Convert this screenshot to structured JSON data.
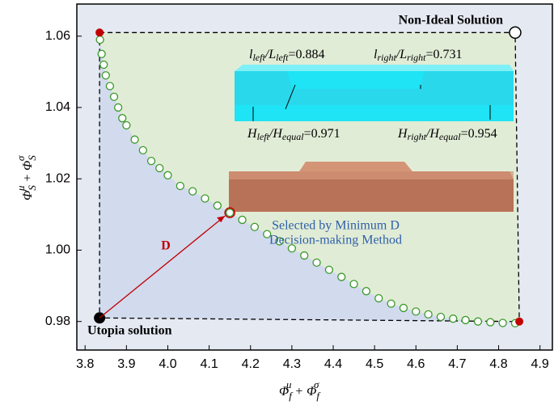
{
  "chart_data": {
    "type": "scatter",
    "x_label": [
      "Φ",
      "f",
      "μ",
      " + Φ",
      "f",
      "σ"
    ],
    "y_label": [
      "Φ",
      "S",
      "μ",
      " + Φ",
      "S",
      "σ"
    ],
    "xlim": [
      3.78,
      4.93
    ],
    "ylim": [
      0.972,
      1.069
    ],
    "xticks": [
      {
        "value": 3.8,
        "label": "3.8"
      },
      {
        "value": 3.9,
        "label": "3.9"
      },
      {
        "value": 4.0,
        "label": "4.0"
      },
      {
        "value": 4.1,
        "label": "4.1"
      },
      {
        "value": 4.2,
        "label": "4.2"
      },
      {
        "value": 4.3,
        "label": "4.3"
      },
      {
        "value": 4.4,
        "label": "4.4"
      },
      {
        "value": 4.5,
        "label": "4.5"
      },
      {
        "value": 4.6,
        "label": "4.6"
      },
      {
        "value": 4.7,
        "label": "4.7"
      },
      {
        "value": 4.8,
        "label": "4.8"
      },
      {
        "value": 4.9,
        "label": "4.9"
      }
    ],
    "yticks": [
      0.98,
      {
        "value": 1.0,
        "label": "1.00"
      },
      1.02,
      1.04,
      1.06
    ],
    "series": [
      {
        "color": "#3a9a2a",
        "x": [
          3.836,
          3.84,
          3.845,
          3.85,
          3.86,
          3.87,
          3.88,
          3.89,
          3.9,
          3.92,
          3.94,
          3.96,
          3.98,
          4.0,
          4.03,
          4.06,
          4.09,
          4.12,
          4.15,
          4.18,
          4.21,
          4.24,
          4.27,
          4.3,
          4.33,
          4.36,
          4.39,
          4.42,
          4.45,
          4.48,
          4.51,
          4.54,
          4.57,
          4.6,
          4.63,
          4.66,
          4.69,
          4.72,
          4.75,
          4.78,
          4.81,
          4.84
        ],
        "values": [
          1.059,
          1.055,
          1.052,
          1.049,
          1.046,
          1.043,
          1.04,
          1.037,
          1.035,
          1.031,
          1.028,
          1.025,
          1.023,
          1.021,
          1.018,
          1.0165,
          1.0145,
          1.0125,
          1.0105,
          1.0085,
          1.0065,
          1.0045,
          1.0025,
          1.0005,
          0.9985,
          0.9965,
          0.9945,
          0.9925,
          0.9905,
          0.9885,
          0.9865,
          0.985,
          0.9838,
          0.9828,
          0.982,
          0.9813,
          0.9808,
          0.9804,
          0.98,
          0.9798,
          0.9796,
          0.9795
        ]
      }
    ],
    "utopia": {
      "x": 3.835,
      "y": 0.981,
      "label": "Utopia solution"
    },
    "non_ideal": {
      "x": 4.84,
      "y": 1.061,
      "label": "Non-Ideal Solution"
    },
    "extremes": {
      "x": [
        3.835,
        4.85
      ],
      "y": [
        1.061,
        0.98
      ],
      "color": "#c00000"
    },
    "selected": {
      "x": 4.15,
      "y": 1.0105,
      "label": "D"
    },
    "annotations": [
      {
        "parts": [
          "l",
          "left",
          "/L",
          "left",
          "=0.884"
        ]
      },
      {
        "parts": [
          "l",
          "right",
          "/L",
          "right",
          "=0.731"
        ]
      },
      {
        "parts": [
          "H",
          "left",
          "/H",
          "equal",
          "=0.971"
        ]
      },
      {
        "parts": [
          "H",
          "right",
          "/H",
          "equal",
          "=0.954"
        ]
      }
    ],
    "caption": [
      "Selected by Minimum D",
      "Decision-making Method"
    ]
  }
}
